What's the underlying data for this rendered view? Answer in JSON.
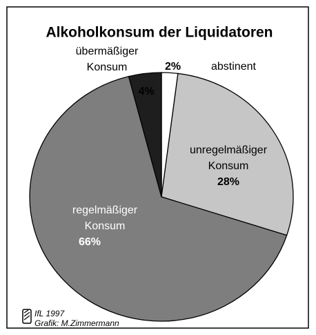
{
  "chart_data": {
    "type": "pie",
    "title": "Alkoholkonsum der Liquidatoren",
    "categories": [
      [
        "abstinent"
      ],
      [
        "unregelmäßiger",
        "Konsum"
      ],
      [
        "regelmäßiger",
        "Konsum"
      ],
      [
        "übermäßiger",
        "Konsum"
      ]
    ],
    "values": [
      2,
      28,
      66,
      4
    ],
    "value_labels": [
      "2%",
      "28%",
      "66%",
      "4%"
    ],
    "colors": [
      "#ffffff",
      "#c6c6c6",
      "#7e7e7e",
      "#1e1e1e"
    ],
    "source": [
      "IfL 1997",
      "Grafik: M.Zimmermann"
    ]
  }
}
